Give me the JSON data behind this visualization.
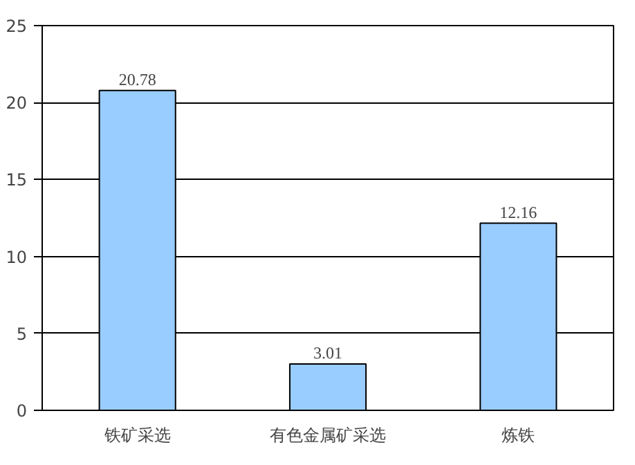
{
  "chart_data": {
    "type": "bar",
    "categories": [
      "铁矿采选",
      "有色金属矿采选",
      "炼铁"
    ],
    "values": [
      20.78,
      3.01,
      12.16
    ],
    "color": "#99ccff",
    "ylim": [
      0,
      25
    ],
    "yticks": [
      0,
      5,
      10,
      15,
      20,
      25
    ],
    "grid": "y",
    "data_labels": true
  }
}
